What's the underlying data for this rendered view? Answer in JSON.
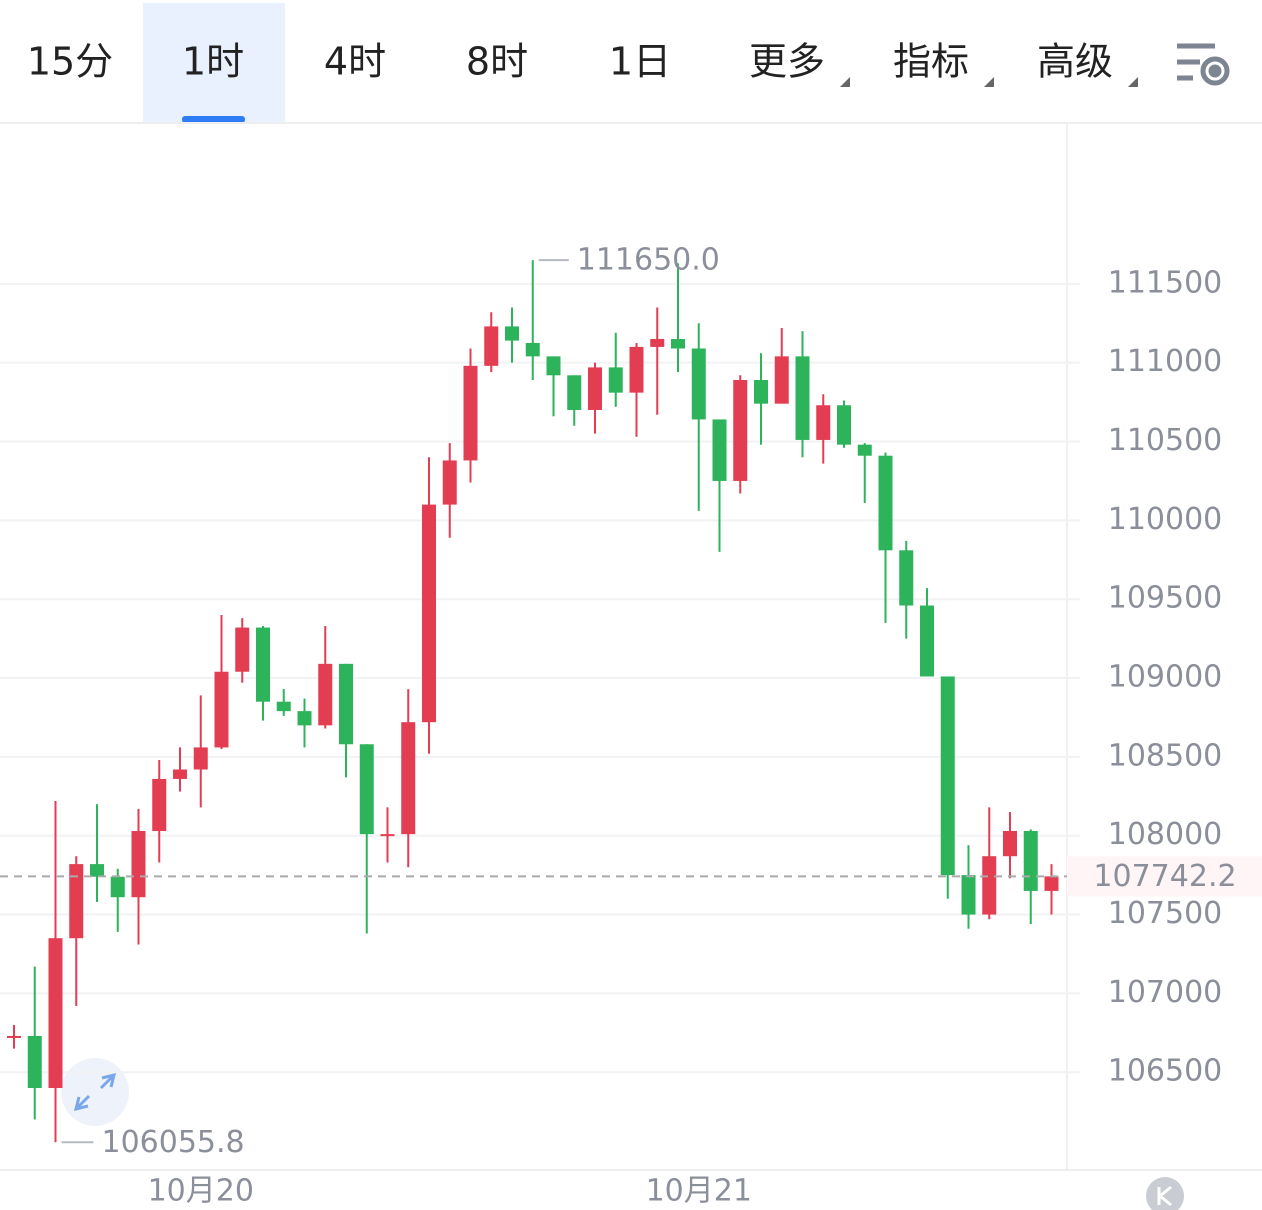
{
  "toolbar": {
    "tabs": [
      "15分",
      "1时",
      "4时",
      "8时",
      "1日",
      "更多",
      "指标",
      "高级"
    ],
    "active": 1
  },
  "chart_data": {
    "type": "candlestick",
    "categories": [
      null,
      null,
      null,
      null,
      null,
      null,
      null,
      null,
      null,
      "10月20",
      null,
      null,
      null,
      null,
      null,
      null,
      null,
      null,
      null,
      null,
      null,
      null,
      null,
      null,
      null,
      null,
      null,
      null,
      null,
      null,
      null,
      null,
      null,
      "10月21",
      null,
      null,
      null,
      null,
      null,
      null,
      null,
      null,
      null,
      null,
      null,
      null,
      null,
      null,
      null,
      null,
      null
    ],
    "open": [
      106730,
      106730,
      106400,
      107350,
      107820,
      107740,
      107610,
      108030,
      108360,
      108420,
      108560,
      109040,
      109320,
      108850,
      108790,
      108700,
      109090,
      108580,
      108000,
      108010,
      108720,
      110100,
      110380,
      110980,
      111230,
      111125,
      111040,
      110920,
      110700,
      110970,
      110810,
      111100,
      111150,
      111090,
      110640,
      110250,
      110890,
      110740,
      111040,
      110510,
      110730,
      110480,
      110410,
      109810,
      109460,
      109010,
      107750,
      107500,
      107870,
      108030,
      107650
    ],
    "high": [
      106800,
      107170,
      108220,
      107870,
      108200,
      107790,
      108170,
      108480,
      108560,
      108890,
      109400,
      109380,
      109330,
      108930,
      108870,
      109330,
      109090,
      108580,
      108180,
      108930,
      110400,
      110490,
      111090,
      111320,
      111350,
      111650,
      111040,
      110920,
      111000,
      111190,
      111125,
      111350,
      111630,
      111250,
      110640,
      110920,
      111060,
      111220,
      111200,
      110800,
      110760,
      110490,
      110430,
      109870,
      109570,
      109010,
      107940,
      108180,
      108150,
      108040,
      107820
    ],
    "low": [
      106650,
      106200,
      106055.8,
      106920,
      107580,
      107390,
      107310,
      107830,
      108280,
      108180,
      108550,
      108970,
      108730,
      108760,
      108560,
      108680,
      108370,
      107380,
      107830,
      107800,
      108520,
      109890,
      110240,
      110940,
      111000,
      110890,
      110660,
      110600,
      110550,
      110720,
      110530,
      110670,
      110940,
      110060,
      109800,
      110170,
      110480,
      110740,
      110400,
      110360,
      110460,
      110110,
      109350,
      109250,
      109010,
      107600,
      107410,
      107470,
      107730,
      107440,
      107500
    ],
    "close": [
      106730,
      106400,
      107350,
      107820,
      107740,
      107610,
      108030,
      108360,
      108420,
      108560,
      109040,
      109320,
      108850,
      108790,
      108700,
      109090,
      108580,
      108010,
      108010,
      108720,
      110100,
      110380,
      110980,
      111230,
      111140,
      111040,
      110920,
      110700,
      110970,
      110810,
      111100,
      111150,
      111090,
      110640,
      110250,
      110890,
      110740,
      111040,
      110510,
      110730,
      110480,
      110410,
      109810,
      109460,
      109010,
      107750,
      107500,
      107870,
      108030,
      107650,
      107742.2
    ],
    "up_color": "#e33d52",
    "down_color": "#2db35a",
    "ylim": [
      105880,
      112520
    ],
    "yticks": [
      106500,
      107000,
      107500,
      108000,
      108500,
      109000,
      109500,
      110000,
      110500,
      111000,
      111500
    ],
    "grid": true,
    "max_label": {
      "value": 111650,
      "label": "111650.0"
    },
    "min_label": {
      "value": 106055.8,
      "label": "106055.8"
    },
    "last_price": {
      "value": 107742.2,
      "label": "107742.2"
    }
  }
}
